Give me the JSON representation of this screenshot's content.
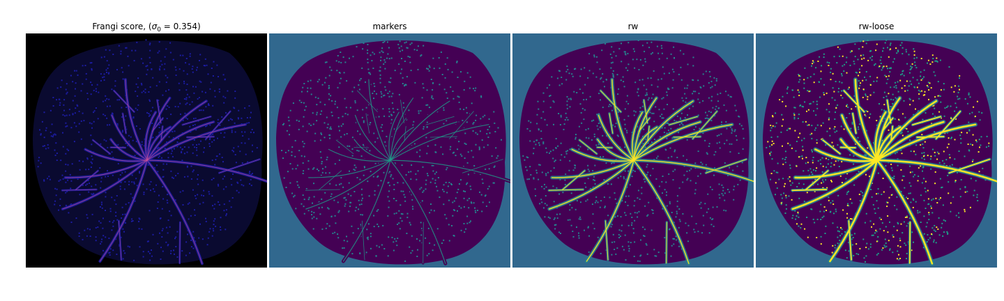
{
  "panels": [
    {
      "title_prefix": "Frangi score, (",
      "title_sigma": "σ",
      "title_sub": "0",
      "title_suffix": " = 0.354)",
      "background": "#000000",
      "style": "frangi"
    },
    {
      "title": "markers",
      "background": "#31688e",
      "style": "markers"
    },
    {
      "title": "rw",
      "background": "#31688e",
      "style": "rw"
    },
    {
      "title": "rw-loose",
      "background": "#31688e",
      "style": "rwloose"
    }
  ],
  "colors": {
    "frangi_disc": "#0a0a30",
    "frangi_vessel": "#1c1ca0",
    "frangi_hot": "#c8509a",
    "viridis_dark": "#440154",
    "viridis_mid": "#26828e",
    "viridis_light": "#1f9e89",
    "viridis_yellow": "#fde725"
  }
}
